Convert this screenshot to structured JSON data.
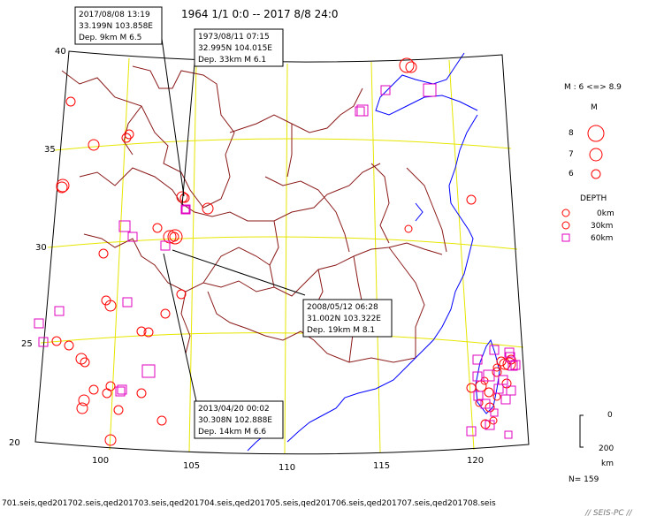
{
  "title": "1964 1/1 0:0 -- 2017 8/8 24:0",
  "colors": {
    "frame": "#000000",
    "grid": "#e6e600",
    "boundary": "#8b1a1a",
    "coast": "#0000ff",
    "shallow": "#ff0000",
    "deep": "#e000c0"
  },
  "axes": {
    "lat_labels": [
      "40",
      "35",
      "30",
      "25",
      "20"
    ],
    "lon_labels": [
      "100",
      "105",
      "110",
      "115",
      "120"
    ]
  },
  "legend": {
    "mag_range": "M : 6 <=> 8.9",
    "mag_header": "M",
    "mags": [
      "8",
      "7",
      "6"
    ],
    "depth_header": "DEPTH",
    "depths": [
      "0km",
      "30km",
      "60km"
    ],
    "scale_top": "0",
    "scale_bottom": "200",
    "scale_unit": "km",
    "count": "N= 159"
  },
  "callouts": [
    {
      "id": "2017",
      "date": "2017/08/08 13:19",
      "coords": "33.199N  103.858E",
      "depmag": "Dep.  9km    M 6.5"
    },
    {
      "id": "1973",
      "date": "1973/08/11 07:15",
      "coords": "32.995N  104.015E",
      "depmag": "Dep. 33km    M 6.1"
    },
    {
      "id": "2008",
      "date": "2008/05/12 06:28",
      "coords": "31.002N  103.322E",
      "depmag": "Dep. 19km    M 8.1"
    },
    {
      "id": "2013",
      "date": "2013/04/20 00:02",
      "coords": "30.308N  102.888E",
      "depmag": "Dep. 14km    M 6.6"
    }
  ],
  "files": "701.seis,qed201702.seis,qed201703.seis,qed201704.seis,qed201705.seis,qed201706.seis,qed201707.seis,qed201708.seis",
  "watermark": "// SEIS-PC //"
}
